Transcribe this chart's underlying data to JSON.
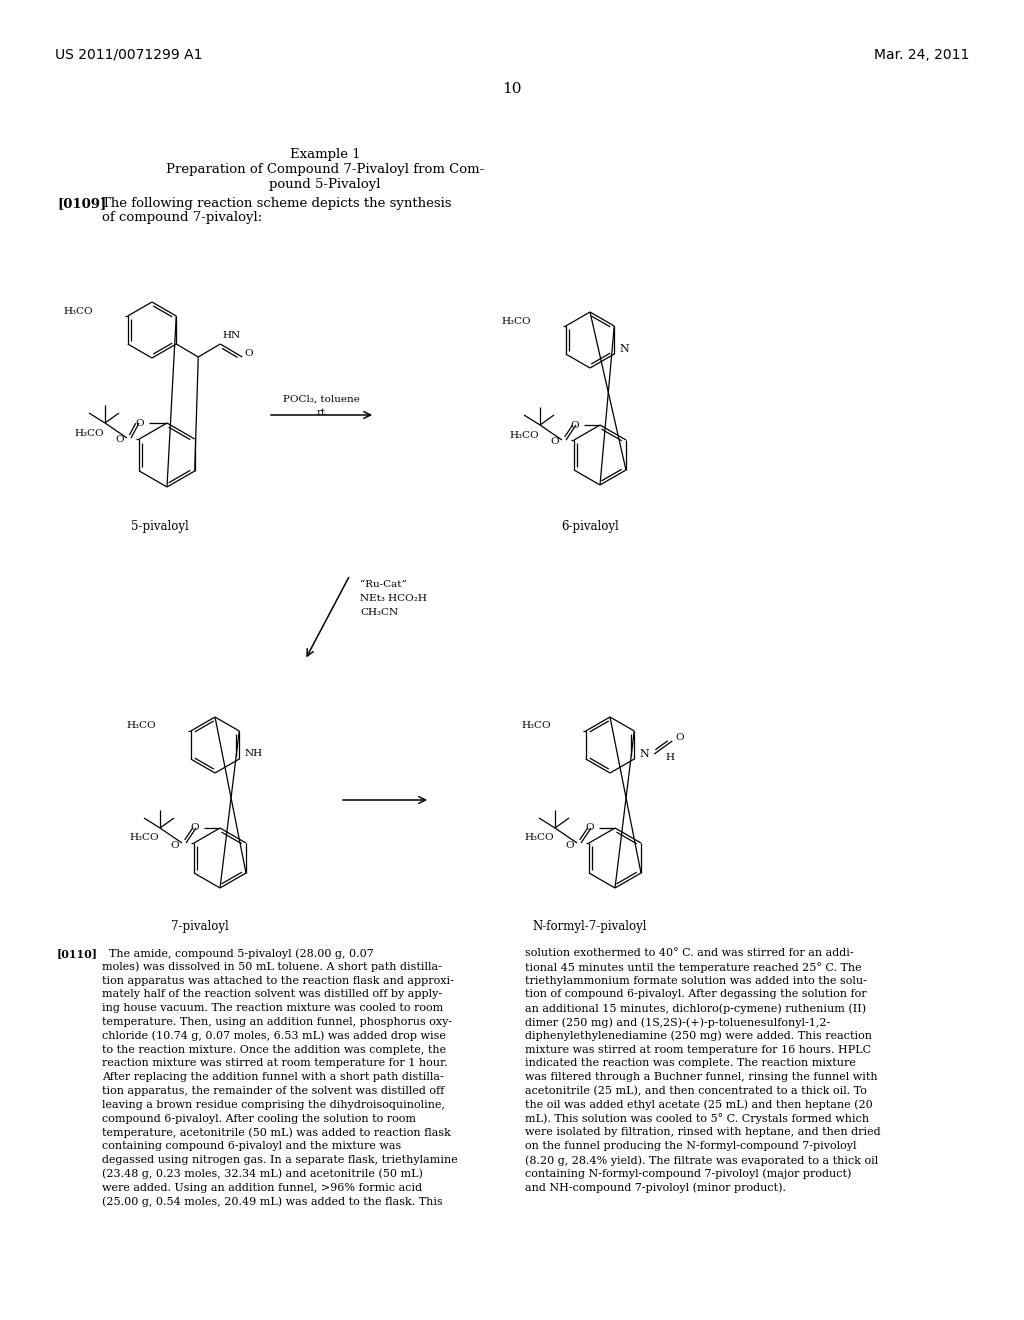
{
  "background_color": "#ffffff",
  "header_left": "US 2011/0071299 A1",
  "header_right": "Mar. 24, 2011",
  "page_number": "10",
  "title_line1": "Example 1",
  "title_line2": "Preparation of Compound 7-Pivaloyl from Com-",
  "title_line3": "pound 5-Pivaloyl",
  "para109_tag": "[0109]",
  "para109_text1": "The following reaction scheme depicts the synthesis",
  "para109_text2": "of compound 7-pivaloyl:",
  "reagent1_line1": "POCl₃, toluene",
  "reagent1_line2": "rt",
  "reagent2_line1": "“Ru-Cat”",
  "reagent2_line2": "NEt₃ HCO₂H",
  "reagent2_line3": "CH₃CN",
  "label_5piv": "5-pivaloyl",
  "label_6piv": "6-pivaloyl",
  "label_7piv": "7-pivaloyl",
  "label_Nformyl": "N-formyl-7-pivaloyl",
  "para110_tag": "[0110]",
  "para110_left": [
    "  The amide, compound 5-pivaloyl (28.00 g, 0.07",
    "moles) was dissolved in 50 mL toluene. A short path distilla-",
    "tion apparatus was attached to the reaction flask and approxi-",
    "mately half of the reaction solvent was distilled off by apply-",
    "ing house vacuum. The reaction mixture was cooled to room",
    "temperature. Then, using an addition funnel, phosphorus oxy-",
    "chloride (10.74 g, 0.07 moles, 6.53 mL) was added drop wise",
    "to the reaction mixture. Once the addition was complete, the",
    "reaction mixture was stirred at room temperature for 1 hour.",
    "After replacing the addition funnel with a short path distilla-",
    "tion apparatus, the remainder of the solvent was distilled off",
    "leaving a brown residue comprising the dihydroisoquinoline,",
    "compound 6-pivaloyl. After cooling the solution to room",
    "temperature, acetonitrile (50 mL) was added to reaction flask",
    "containing compound 6-pivaloyl and the mixture was",
    "degassed using nitrogen gas. In a separate flask, triethylamine",
    "(23.48 g, 0.23 moles, 32.34 mL) and acetonitrile (50 mL)",
    "were added. Using an addition funnel, >96% formic acid",
    "(25.00 g, 0.54 moles, 20.49 mL) was added to the flask. This"
  ],
  "para110_right": [
    "solution exothermed to 40° C. and was stirred for an addi-",
    "tional 45 minutes until the temperature reached 25° C. The",
    "triethylammonium formate solution was added into the solu-",
    "tion of compound 6-pivaloyl. After degassing the solution for",
    "an additional 15 minutes, dichloro(p-cymene) ruthenium (II)",
    "dimer (250 mg) and (1S,2S)-(+)-p-toluenesulfonyl-1,2-",
    "diphenylethylenediamine (250 mg) were added. This reaction",
    "mixture was stirred at room temperature for 16 hours. HPLC",
    "indicated the reaction was complete. The reaction mixture",
    "was filtered through a Buchner funnel, rinsing the funnel with",
    "acetonitrile (25 mL), and then concentrated to a thick oil. To",
    "the oil was added ethyl acetate (25 mL) and then heptane (20",
    "mL). This solution was cooled to 5° C. Crystals formed which",
    "were isolated by filtration, rinsed with heptane, and then dried",
    "on the funnel producing the N-formyl-compound 7-pivoloyl",
    "(8.20 g, 28.4% yield). The filtrate was evaporated to a thick oil",
    "containing N-formyl-compound 7-pivoloyl (major product)",
    "and NH-compound 7-pivoloyl (minor product)."
  ]
}
